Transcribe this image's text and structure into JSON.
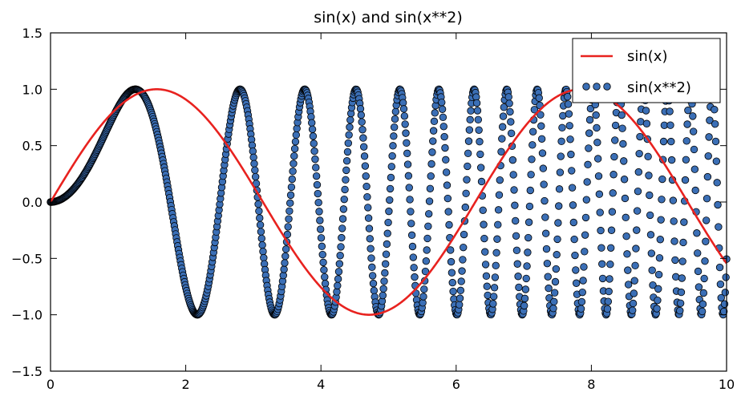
{
  "chart_data": {
    "type": "line",
    "title": "sin(x) and sin(x**2)",
    "xlabel": "",
    "ylabel": "",
    "xlim": [
      0,
      10
    ],
    "ylim": [
      -1.5,
      1.5
    ],
    "x_ticks": [
      0,
      2,
      4,
      6,
      8,
      10
    ],
    "x_tick_labels": [
      "0",
      "2",
      "4",
      "6",
      "8",
      "10"
    ],
    "y_ticks": [
      1.5,
      1.0,
      0.5,
      0.0,
      -0.5,
      -1.0,
      -1.5
    ],
    "y_tick_labels": [
      "1.5",
      "1.0",
      "0.5",
      "0.0",
      "−0.5",
      "−1.0",
      "−1.5"
    ],
    "grid": false,
    "legend_position": "top-right",
    "sample_count": 1000,
    "series": [
      {
        "name": "sin(x)",
        "kind": "line",
        "function": "sin(x)",
        "color": "#e8221f"
      },
      {
        "name": "sin(x**2)",
        "kind": "scatter",
        "function": "sin(x**2)",
        "color": "#3b6fb6",
        "edge_color": "#000000"
      }
    ]
  }
}
